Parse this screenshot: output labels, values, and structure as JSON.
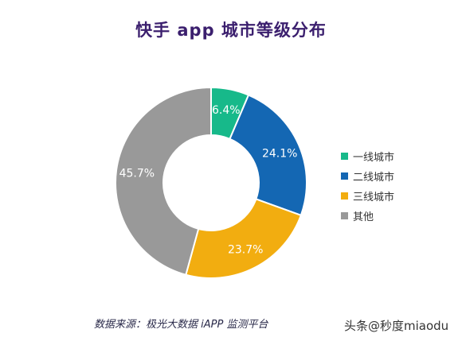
{
  "chart_data": {
    "type": "pie",
    "title": "快手 app 城市等级分布",
    "categories": [
      "一线城市",
      "二线城市",
      "三线城市",
      "其他"
    ],
    "values": [
      6.4,
      24.1,
      23.7,
      45.7
    ],
    "value_labels": [
      "6.4%",
      "24.1%",
      "23.7%",
      "45.7%"
    ],
    "colors": [
      "#17b98a",
      "#1467b3",
      "#f2ad10",
      "#999999"
    ],
    "donut": true,
    "legend_position": "right"
  },
  "source": "数据来源：极光大数据 iAPP 监测平台",
  "watermark": "头条@秒度miaodu"
}
